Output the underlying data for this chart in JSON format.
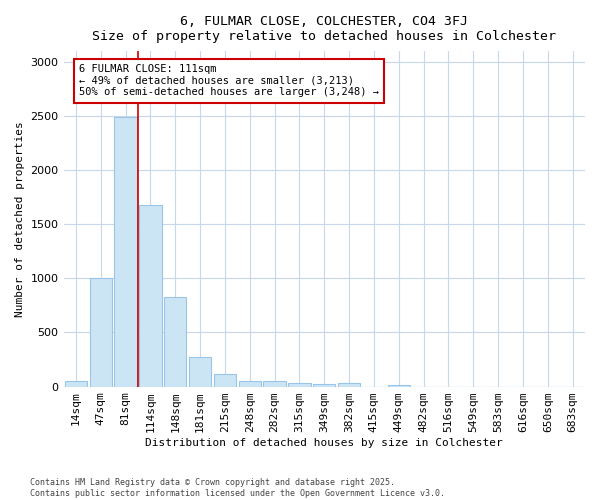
{
  "title1": "6, FULMAR CLOSE, COLCHESTER, CO4 3FJ",
  "title2": "Size of property relative to detached houses in Colchester",
  "xlabel": "Distribution of detached houses by size in Colchester",
  "ylabel": "Number of detached properties",
  "categories": [
    "14sqm",
    "47sqm",
    "81sqm",
    "114sqm",
    "148sqm",
    "181sqm",
    "215sqm",
    "248sqm",
    "282sqm",
    "315sqm",
    "349sqm",
    "382sqm",
    "415sqm",
    "449sqm",
    "482sqm",
    "516sqm",
    "549sqm",
    "583sqm",
    "616sqm",
    "650sqm",
    "683sqm"
  ],
  "values": [
    50,
    1005,
    2490,
    1680,
    830,
    270,
    120,
    55,
    50,
    35,
    25,
    30,
    0,
    18,
    0,
    0,
    0,
    0,
    0,
    0,
    0
  ],
  "bar_color": "#cce5f5",
  "bar_edge_color": "#99c5e8",
  "vline_position": 2.5,
  "vline_color": "#cc0000",
  "annotation_text": "6 FULMAR CLOSE: 111sqm\n← 49% of detached houses are smaller (3,213)\n50% of semi-detached houses are larger (3,248) →",
  "annotation_box_edgecolor": "#cc0000",
  "fig_background": "#ffffff",
  "plot_background": "#ffffff",
  "grid_color": "#c8d8ea",
  "ylim": [
    0,
    3100
  ],
  "yticks": [
    0,
    500,
    1000,
    1500,
    2000,
    2500,
    3000
  ],
  "footer1": "Contains HM Land Registry data © Crown copyright and database right 2025.",
  "footer2": "Contains public sector information licensed under the Open Government Licence v3.0."
}
